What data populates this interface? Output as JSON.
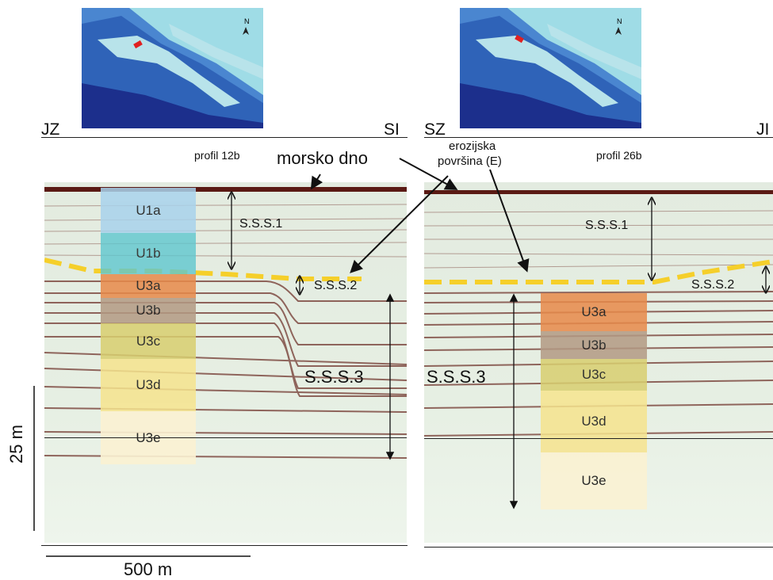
{
  "left_profile": {
    "direction_left": "JZ",
    "direction_right": "SI",
    "name": "profil 12b",
    "sequences": [
      "S.S.S.1",
      "S.S.S.2",
      "S.S.S.3"
    ],
    "units": [
      {
        "label": "U1a",
        "color": "#a9d3ec"
      },
      {
        "label": "U1b",
        "color": "#5fc7cf"
      },
      {
        "label": "U3a",
        "color": "#e88a4a"
      },
      {
        "label": "U3b",
        "color": "#b39a84"
      },
      {
        "label": "U3c",
        "color": "#d9cf70"
      },
      {
        "label": "U3d",
        "color": "#f6e48e"
      },
      {
        "label": "U3e",
        "color": "#fbf2d3"
      }
    ]
  },
  "right_profile": {
    "direction_left": "SZ",
    "direction_right": "JI",
    "name": "profil 26b",
    "sequences": [
      "S.S.S.1",
      "S.S.S.2",
      "S.S.S.3"
    ],
    "units": [
      {
        "label": "U3a",
        "color": "#e88a4a"
      },
      {
        "label": "U3b",
        "color": "#b39a84"
      },
      {
        "label": "U3c",
        "color": "#d9cf70"
      },
      {
        "label": "U3d",
        "color": "#f6e48e"
      },
      {
        "label": "U3e",
        "color": "#fbf2d3"
      }
    ]
  },
  "annotations": {
    "seafloor": "morsko dno",
    "erosion_line1": "erozijska",
    "erosion_line2": "površina (E)"
  },
  "scales": {
    "vertical": "25 m",
    "horizontal": "500 m"
  },
  "map": {
    "north_label": "N",
    "track_color": "#e02020"
  },
  "colors": {
    "erosion_surface": "#f5cf2a",
    "seafloor_reflector": "#5a1a14",
    "background": "#e9f1e6"
  }
}
